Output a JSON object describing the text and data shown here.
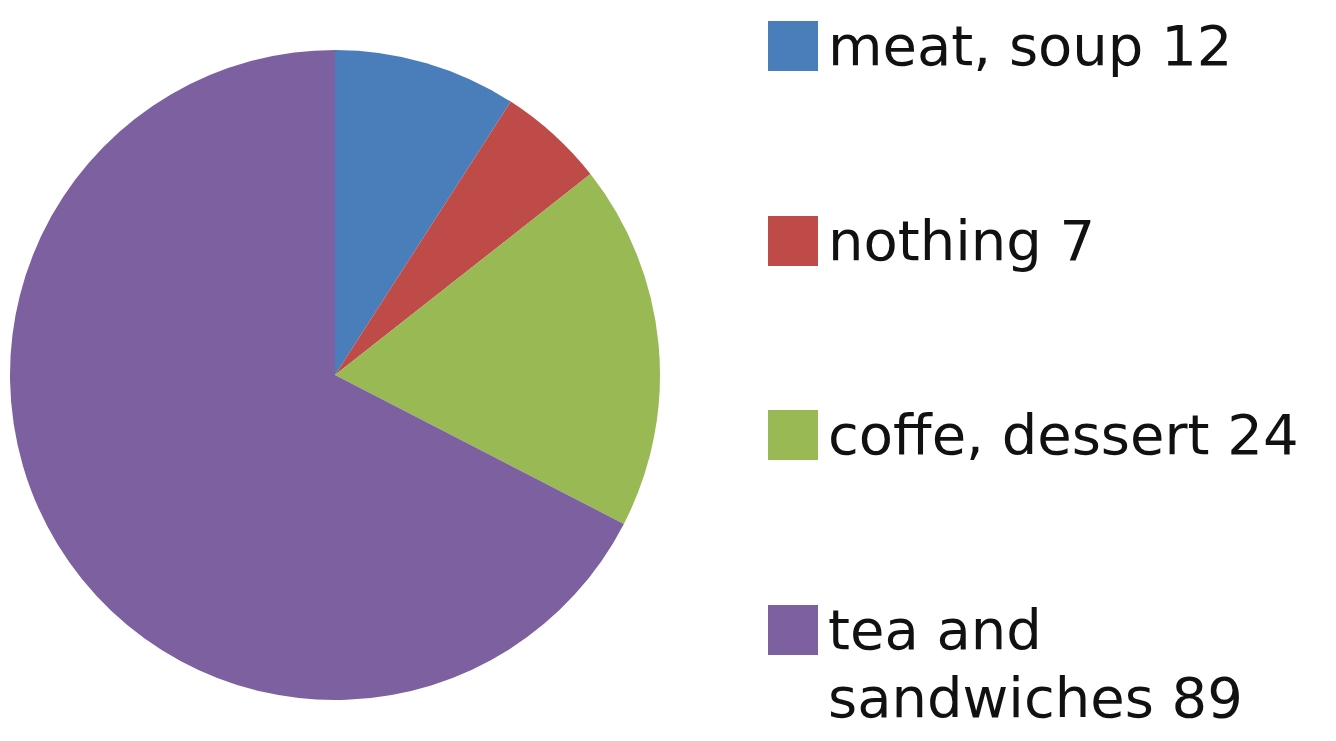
{
  "chart_data": {
    "type": "pie",
    "categories": [
      "meat, soup 12",
      "nothing 7",
      "coffe, dessert 24",
      "tea and sandwiches 89"
    ],
    "values": [
      12,
      7,
      24,
      89
    ],
    "colors": [
      "#4a7ebb",
      "#be4b48",
      "#98b954",
      "#7d60a0"
    ],
    "legend": "right"
  }
}
